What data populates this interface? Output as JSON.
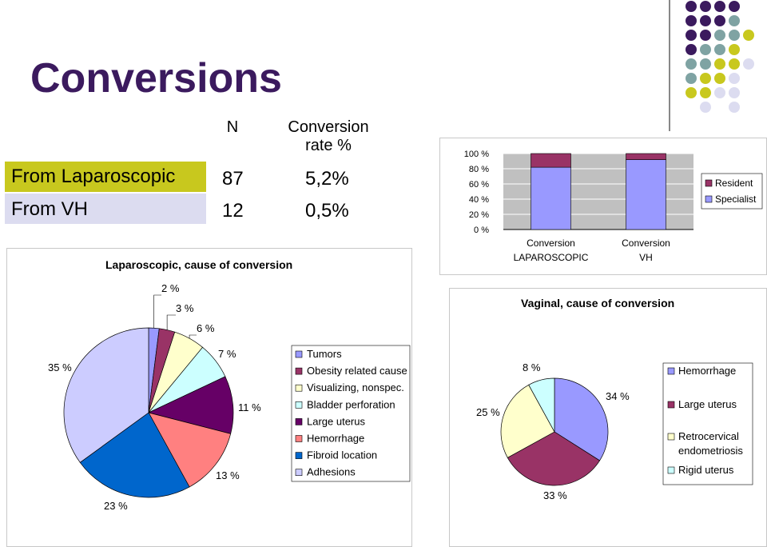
{
  "slide": {
    "title": "Conversions",
    "table": {
      "header_n": "N",
      "header_rate": "Conversion rate %",
      "rows": [
        {
          "label": "From Laparoscopic",
          "n": "87",
          "rate": "5,2%",
          "band_color": "#c8c81e"
        },
        {
          "label": "From VH",
          "n": "12",
          "rate": "0,5%",
          "band_color": "#dcdcf0"
        }
      ]
    },
    "decor_colors": [
      "#3b1a5e",
      "#7fa3a3",
      "#c8c81e",
      "#dcdcf0"
    ]
  },
  "chart_data": [
    {
      "type": "bar",
      "stacked": true,
      "percent_stacked": true,
      "categories": [
        "Conversion LAPAROSCOPIC",
        "Conversion VH"
      ],
      "series": [
        {
          "name": "Specialist",
          "values": [
            82,
            92
          ],
          "color": "#9999ff"
        },
        {
          "name": "Resident",
          "values": [
            18,
            8
          ],
          "color": "#993366"
        }
      ],
      "ylim": [
        0,
        100
      ],
      "ytick_labels": [
        "100 %",
        "80 %",
        "60 %",
        "40 %",
        "20 %",
        "0 %"
      ],
      "legend": {
        "position": "right",
        "entries": [
          "Resident",
          "Specialist"
        ]
      },
      "grid": true
    },
    {
      "type": "pie",
      "title": "Laparoscopic, cause of conversion",
      "labels": [
        "Tumors",
        "Obesity related cause",
        "Visualizing, nonspec.",
        "Bladder perforation",
        "Large uterus",
        "Hemorrhage",
        "Fibroid location",
        "Adhesions"
      ],
      "values": [
        2,
        3,
        6,
        7,
        11,
        13,
        23,
        35
      ],
      "value_labels": [
        "2 %",
        "3 %",
        "6 %",
        "7 %",
        "11 %",
        "13 %",
        "23 %",
        "35 %"
      ],
      "colors": [
        "#9999ff",
        "#993366",
        "#ffffcc",
        "#ccffff",
        "#660066",
        "#ff8080",
        "#0066cc",
        "#ccccff"
      ],
      "legend": {
        "position": "right"
      }
    },
    {
      "type": "pie",
      "title": "Vaginal, cause of conversion",
      "labels": [
        "Hemorrhage",
        "Large uterus",
        "Retrocervical endometriosis",
        "Rigid uterus"
      ],
      "values": [
        34,
        33,
        25,
        8
      ],
      "value_labels": [
        "34 %",
        "33 %",
        "25 %",
        "8 %"
      ],
      "colors": [
        "#9999ff",
        "#993366",
        "#ffffcc",
        "#ccffff"
      ],
      "legend": {
        "position": "right"
      }
    }
  ]
}
